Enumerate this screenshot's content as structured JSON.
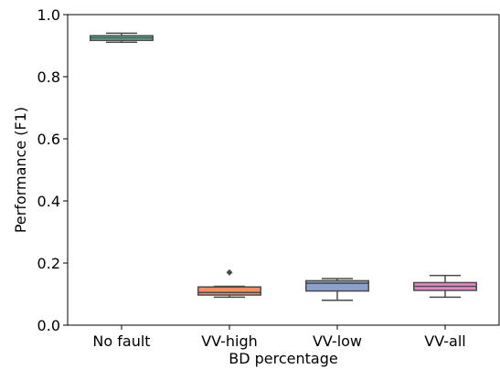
{
  "chart_data": {
    "type": "box",
    "title": "",
    "xlabel": "BD percentage",
    "ylabel": "Performance (F1)",
    "ylim": [
      0.0,
      1.0
    ],
    "yticks": [
      "0.0",
      "0.2",
      "0.4",
      "0.6",
      "0.8",
      "1.0"
    ],
    "grid": false,
    "legend": "none",
    "categories": [
      "No fault",
      "VV-high",
      "VV-low",
      "VV-all"
    ],
    "boxes": [
      {
        "category": "No fault",
        "whisker_low": 0.911,
        "q1": 0.917,
        "median": 0.925,
        "q3": 0.932,
        "whisker_high": 0.94,
        "outliers": [],
        "color": "#66c2a5"
      },
      {
        "category": "VV-high",
        "whisker_low": 0.09,
        "q1": 0.097,
        "median": 0.105,
        "q3": 0.123,
        "whisker_high": 0.125,
        "outliers": [
          0.17
        ],
        "color": "#fc8d62"
      },
      {
        "category": "VV-low",
        "whisker_low": 0.08,
        "q1": 0.11,
        "median": 0.135,
        "q3": 0.143,
        "whisker_high": 0.15,
        "outliers": [],
        "color": "#8da0cb"
      },
      {
        "category": "VV-all",
        "whisker_low": 0.09,
        "q1": 0.112,
        "median": 0.125,
        "q3": 0.137,
        "whisker_high": 0.16,
        "outliers": [],
        "color": "#e78ac3"
      }
    ]
  }
}
